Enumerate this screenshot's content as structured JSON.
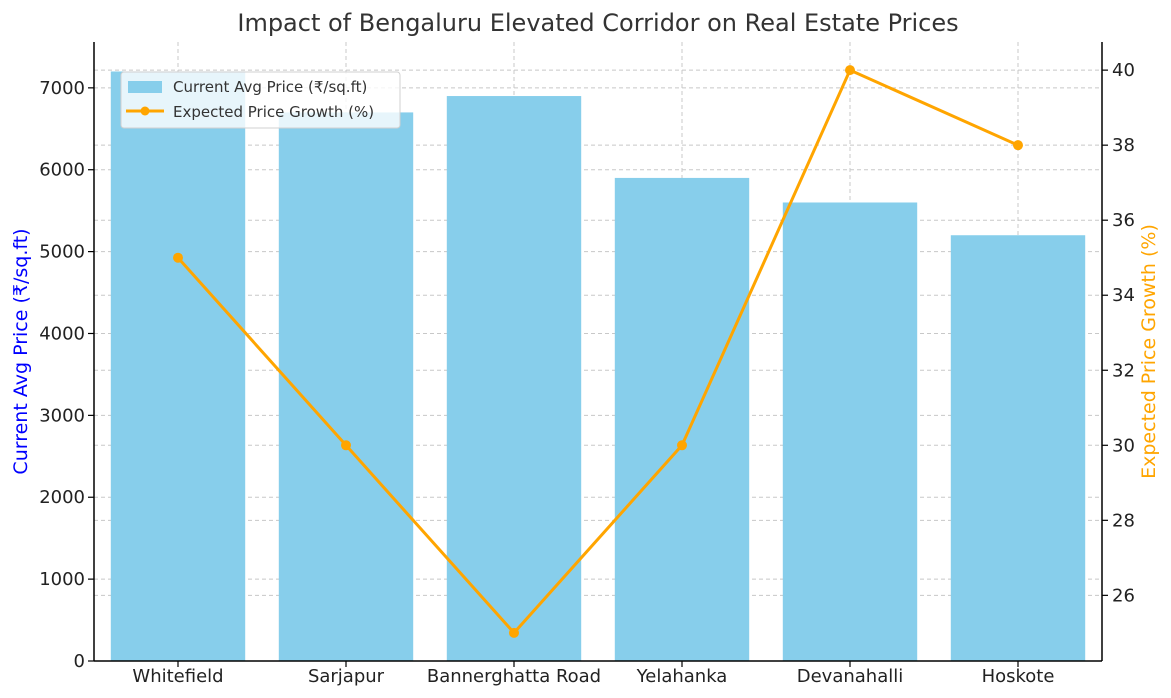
{
  "chart_data": {
    "type": "bar",
    "title": "Impact of Bengaluru Elevated Corridor on Real Estate Prices",
    "categories": [
      "Whitefield",
      "Sarjapur",
      "Bannerghatta Road",
      "Yelahanka",
      "Devanahalli",
      "Hoskote"
    ],
    "series": [
      {
        "name": "Current Avg Price (₹/sq.ft)",
        "type": "bar",
        "axis": "left",
        "color": "#87CEEB",
        "values": [
          7200,
          6700,
          6900,
          5900,
          5600,
          5200
        ]
      },
      {
        "name": "Expected Price Growth (%)",
        "type": "line",
        "axis": "right",
        "color": "#FFA500",
        "values": [
          35,
          30,
          25,
          30,
          40,
          38
        ]
      }
    ],
    "ylabel": "Current Avg Price (₹/sq.ft)",
    "ylabel_color": "#0000FF",
    "y2label": "Expected Price Growth (%)",
    "y2label_color": "#FFA500",
    "ylim": [
      0,
      7560
    ],
    "y2lim": [
      24.25,
      40.75
    ],
    "yticks": [
      0,
      1000,
      2000,
      3000,
      4000,
      5000,
      6000,
      7000
    ],
    "y2ticks": [
      26,
      28,
      30,
      32,
      34,
      36,
      38,
      40
    ],
    "grid": true,
    "legend": "top-left"
  }
}
